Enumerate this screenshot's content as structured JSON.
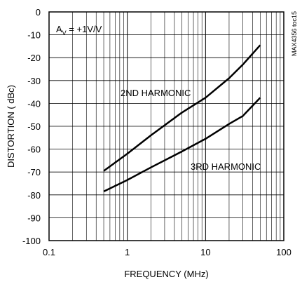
{
  "chart_data": {
    "type": "line",
    "xscale": "log",
    "xlim": [
      0.1,
      100
    ],
    "ylim": [
      -100,
      0
    ],
    "xlabel": "FREQUENCY (MHz)",
    "ylabel": "DISTORTION ( dBc)",
    "grid": true,
    "x_ticks": [
      "0.1",
      "1",
      "10",
      "100"
    ],
    "y_ticks": [
      "0",
      "-10",
      "-20",
      "-30",
      "-40",
      "-50",
      "-60",
      "-70",
      "-80",
      "-90",
      "-100"
    ],
    "condition": "A",
    "condition_sub": "V",
    "condition_value": " = +1V/V",
    "figure_id": "MAX4356 toc15",
    "series": [
      {
        "name": "2ND HARMONIC",
        "x": [
          0.5,
          1,
          2,
          5,
          10,
          20,
          30,
          50
        ],
        "y": [
          -69.5,
          -62,
          -54,
          -44,
          -37.5,
          -29,
          -23,
          -14.5
        ]
      },
      {
        "name": "3RD HARMONIC",
        "x": [
          0.5,
          1,
          2,
          5,
          10,
          20,
          30,
          50
        ],
        "y": [
          -78.5,
          -73.5,
          -68,
          -61,
          -55.5,
          -49,
          -45.5,
          -37.5
        ]
      }
    ]
  }
}
